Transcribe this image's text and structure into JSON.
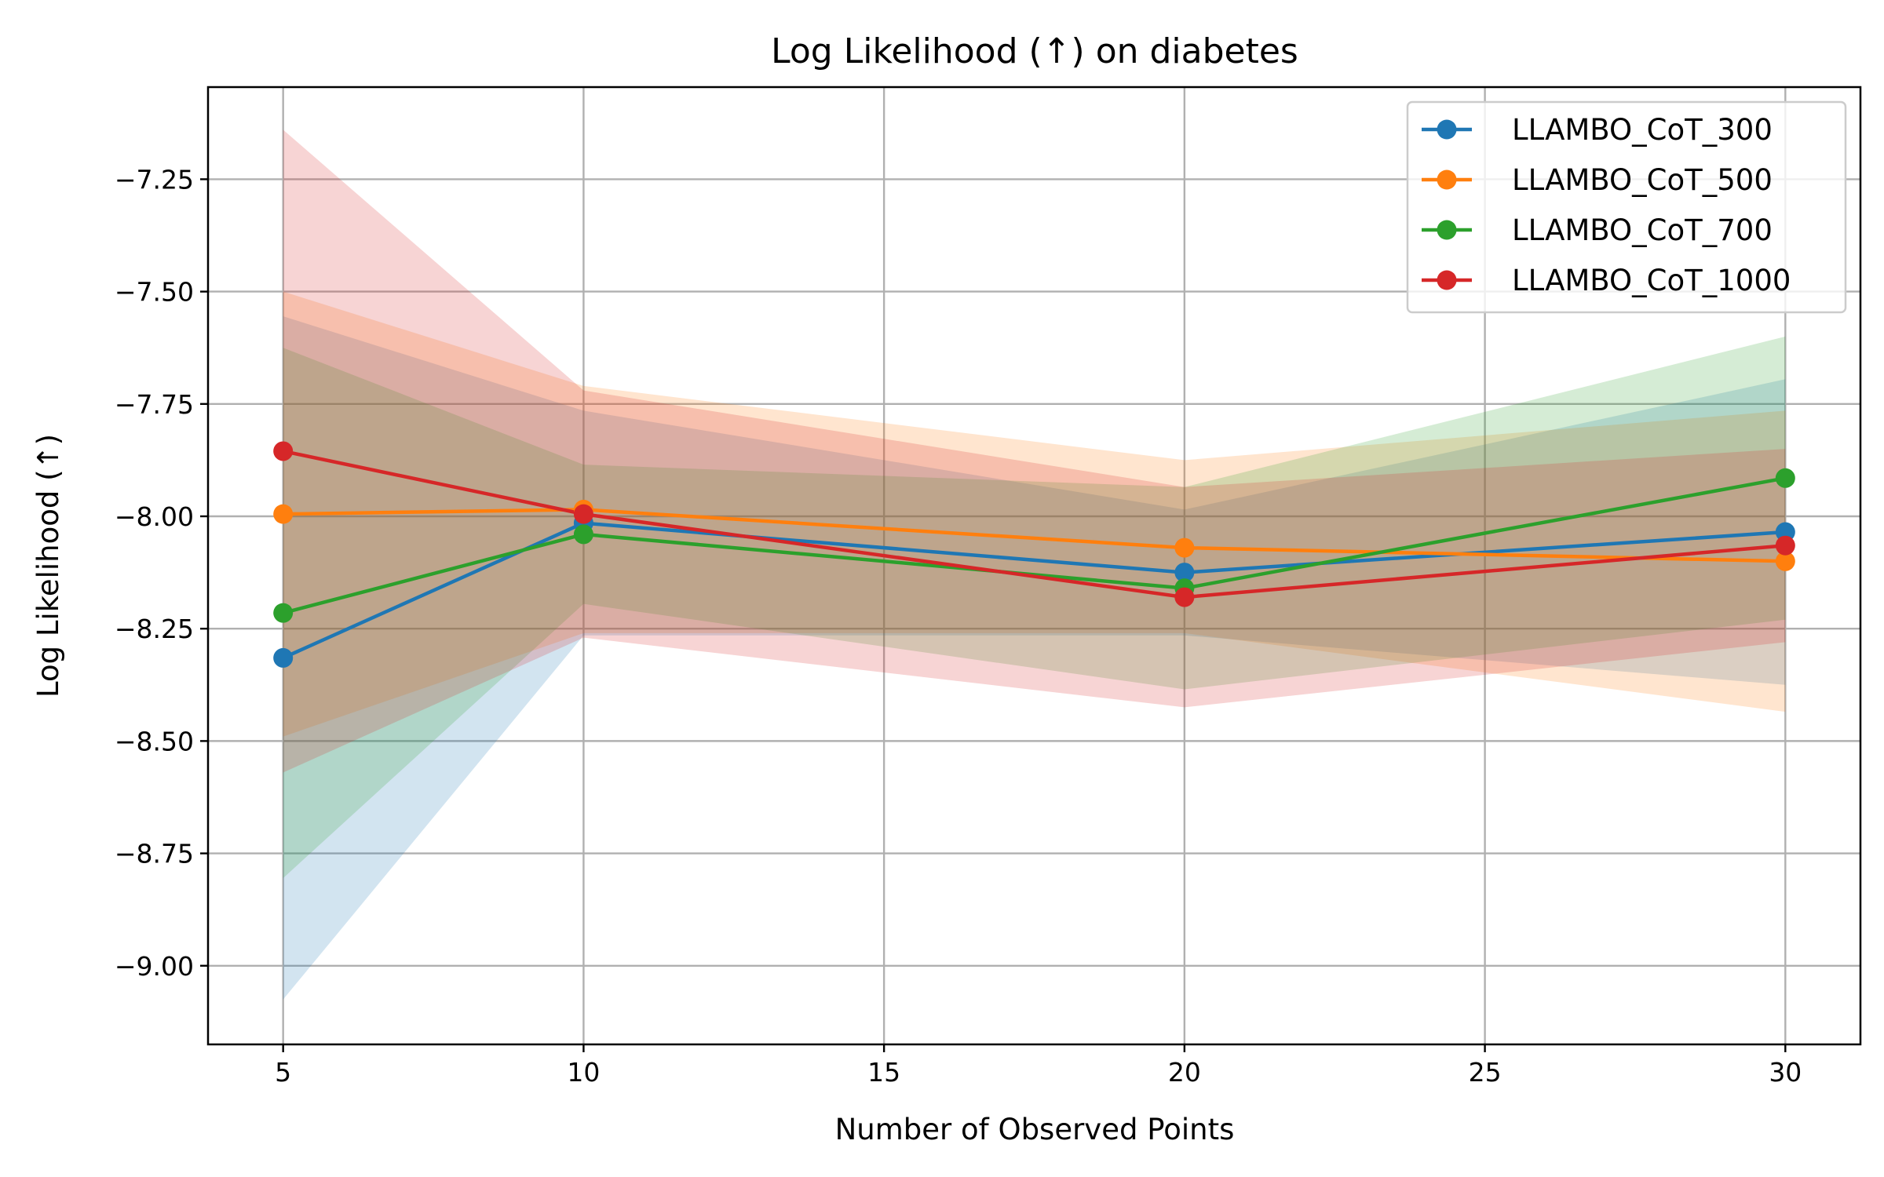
{
  "chart_data": {
    "type": "line",
    "title": "Log Likelihood (↑) on diabetes",
    "xlabel": "Number of Observed Points",
    "ylabel": "Log Likelihood (↑)",
    "x": [
      5,
      10,
      20,
      30
    ],
    "xlim": [
      3.75,
      31.25
    ],
    "ylim": [
      -9.175,
      -7.045
    ],
    "xticks": [
      5,
      10,
      15,
      20,
      25,
      30
    ],
    "yticks": [
      -9.0,
      -8.75,
      -8.5,
      -8.25,
      -8.0,
      -7.75,
      -7.5,
      -7.25
    ],
    "xtick_labels": [
      "5",
      "10",
      "15",
      "20",
      "25",
      "30"
    ],
    "ytick_labels": [
      "−9.00",
      "−8.75",
      "−8.50",
      "−8.25",
      "−8.00",
      "−7.75",
      "−7.50",
      "−7.25"
    ],
    "grid": true,
    "legend_position": "top-right",
    "series": [
      {
        "name": "LLAMBO_CoT_300",
        "color": "#1f77b4",
        "values": [
          -8.315,
          -8.015,
          -8.125,
          -8.035
        ],
        "lower": [
          -9.075,
          -8.265,
          -8.265,
          -8.375
        ],
        "upper": [
          -7.555,
          -7.765,
          -7.985,
          -7.695
        ]
      },
      {
        "name": "LLAMBO_CoT_500",
        "color": "#ff7f0e",
        "values": [
          -7.995,
          -7.985,
          -8.07,
          -8.1
        ],
        "lower": [
          -8.49,
          -8.26,
          -8.26,
          -8.435
        ],
        "upper": [
          -7.5,
          -7.71,
          -7.875,
          -7.765
        ]
      },
      {
        "name": "LLAMBO_CoT_700",
        "color": "#2ca02c",
        "values": [
          -8.215,
          -8.04,
          -8.16,
          -7.915
        ],
        "lower": [
          -8.805,
          -8.195,
          -8.385,
          -8.23
        ],
        "upper": [
          -7.625,
          -7.885,
          -7.935,
          -7.6
        ]
      },
      {
        "name": "LLAMBO_CoT_1000",
        "color": "#d62728",
        "values": [
          -7.855,
          -7.995,
          -8.18,
          -8.065
        ],
        "lower": [
          -8.57,
          -8.27,
          -8.425,
          -8.28
        ],
        "upper": [
          -7.14,
          -7.72,
          -7.935,
          -7.85
        ]
      }
    ]
  }
}
